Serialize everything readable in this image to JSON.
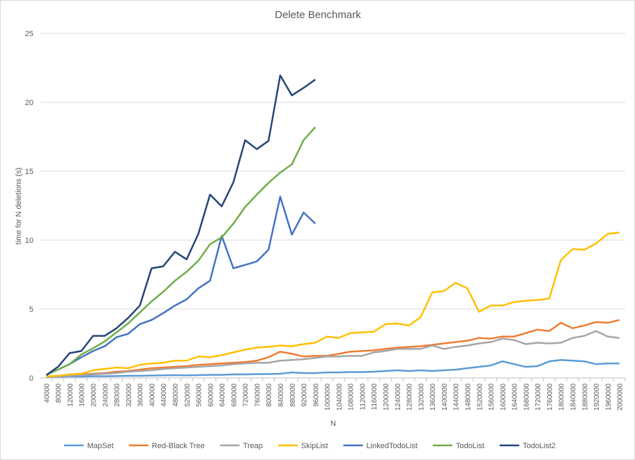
{
  "chart_data": {
    "type": "line",
    "title": "Delete Benchmark",
    "x_label": "N",
    "y_label": "time for N deletions (s)",
    "categories": [
      40000,
      80000,
      120000,
      160000,
      200000,
      240000,
      280000,
      320000,
      360000,
      400000,
      440000,
      480000,
      520000,
      560000,
      600000,
      640000,
      680000,
      720000,
      760000,
      800000,
      840000,
      880000,
      920000,
      960000,
      1000000,
      1040000,
      1080000,
      1120000,
      1160000,
      1200000,
      1240000,
      1280000,
      1320000,
      1360000,
      1400000,
      1440000,
      1480000,
      1520000,
      1560000,
      1600000,
      1640000,
      1680000,
      1720000,
      1760000,
      1800000,
      1840000,
      1880000,
      1920000,
      1960000,
      2000000
    ],
    "ylim": [
      0,
      25
    ],
    "yticks": [
      0,
      5,
      10,
      15,
      20,
      25
    ],
    "grid": true,
    "legend": "bottom",
    "series": [
      {
        "name": "MapSet",
        "color": "#5b9bd5",
        "values": [
          0.05,
          0.08,
          0.1,
          0.1,
          0.12,
          0.12,
          0.13,
          0.15,
          0.15,
          0.17,
          0.18,
          0.2,
          0.18,
          0.2,
          0.22,
          0.22,
          0.25,
          0.25,
          0.27,
          0.28,
          0.3,
          0.4,
          0.35,
          0.35,
          0.4,
          0.4,
          0.42,
          0.42,
          0.45,
          0.5,
          0.55,
          0.5,
          0.55,
          0.5,
          0.55,
          0.6,
          0.7,
          0.8,
          0.9,
          1.2,
          1.0,
          0.8,
          0.85,
          1.2,
          1.3,
          1.25,
          1.2,
          1.0,
          1.05,
          1.05
        ]
      },
      {
        "name": "Red-Black Tree",
        "color": "#ed7d31",
        "values": [
          0.1,
          0.15,
          0.2,
          0.25,
          0.3,
          0.35,
          0.45,
          0.5,
          0.6,
          0.7,
          0.75,
          0.8,
          0.85,
          0.95,
          1.0,
          1.05,
          1.1,
          1.15,
          1.25,
          1.5,
          1.9,
          1.75,
          1.55,
          1.6,
          1.6,
          1.75,
          1.9,
          1.95,
          2.0,
          2.1,
          2.2,
          2.25,
          2.3,
          2.4,
          2.5,
          2.6,
          2.7,
          2.9,
          2.85,
          3.0,
          3.0,
          3.25,
          3.5,
          3.4,
          4.0,
          3.6,
          3.8,
          4.05,
          4.0,
          4.2
        ]
      },
      {
        "name": "Treap",
        "color": "#a5a5a5",
        "values": [
          0.05,
          0.1,
          0.15,
          0.2,
          0.25,
          0.3,
          0.35,
          0.45,
          0.5,
          0.55,
          0.65,
          0.7,
          0.75,
          0.8,
          0.85,
          0.9,
          1.0,
          1.05,
          1.1,
          1.1,
          1.25,
          1.3,
          1.35,
          1.45,
          1.55,
          1.55,
          1.6,
          1.6,
          1.85,
          1.95,
          2.1,
          2.1,
          2.1,
          2.35,
          2.1,
          2.25,
          2.35,
          2.5,
          2.6,
          2.85,
          2.75,
          2.45,
          2.55,
          2.5,
          2.55,
          2.9,
          3.05,
          3.4,
          3.0,
          2.9
        ]
      },
      {
        "name": "SkipList",
        "color": "#ffc000",
        "values": [
          0.1,
          0.15,
          0.25,
          0.3,
          0.55,
          0.65,
          0.75,
          0.7,
          0.95,
          1.05,
          1.1,
          1.25,
          1.25,
          1.55,
          1.5,
          1.65,
          1.85,
          2.05,
          2.2,
          2.25,
          2.35,
          2.3,
          2.45,
          2.55,
          3.0,
          2.9,
          3.25,
          3.3,
          3.35,
          3.9,
          3.95,
          3.8,
          4.4,
          6.2,
          6.3,
          6.9,
          6.5,
          4.8,
          5.25,
          5.25,
          5.5,
          5.6,
          5.65,
          5.75,
          8.55,
          9.35,
          9.3,
          9.75,
          10.45,
          10.55
        ]
      },
      {
        "name": "LinkedTodoList",
        "color": "#4472c4",
        "values": [
          0.2,
          0.6,
          1.0,
          1.5,
          1.95,
          2.3,
          2.95,
          3.2,
          3.9,
          4.2,
          4.7,
          5.25,
          5.7,
          6.5,
          7.05,
          10.3,
          7.95,
          8.2,
          8.45,
          9.3,
          13.15,
          10.4,
          12.0,
          11.2,
          null,
          null,
          null,
          null,
          null,
          null,
          null,
          null,
          null,
          null,
          null,
          null,
          null,
          null,
          null,
          null,
          null,
          null,
          null,
          null,
          null,
          null,
          null,
          null,
          null,
          null
        ]
      },
      {
        "name": "TodoList",
        "color": "#70ad47",
        "values": [
          0.2,
          0.6,
          1.0,
          1.7,
          2.15,
          2.65,
          3.3,
          3.95,
          4.75,
          5.55,
          6.25,
          7.05,
          7.7,
          8.5,
          9.7,
          10.2,
          11.2,
          12.4,
          13.3,
          14.15,
          14.9,
          15.5,
          17.25,
          18.2,
          null,
          null,
          null,
          null,
          null,
          null,
          null,
          null,
          null,
          null,
          null,
          null,
          null,
          null,
          null,
          null,
          null,
          null,
          null,
          null,
          null,
          null,
          null,
          null,
          null,
          null
        ]
      },
      {
        "name": "TodoList2",
        "color": "#264478",
        "values": [
          0.2,
          0.8,
          1.8,
          1.95,
          3.05,
          3.05,
          3.6,
          4.35,
          5.25,
          7.95,
          8.1,
          9.15,
          8.6,
          10.45,
          13.3,
          12.45,
          14.2,
          17.25,
          16.6,
          17.2,
          21.95,
          20.5,
          21.05,
          21.65,
          null,
          null,
          null,
          null,
          null,
          null,
          null,
          null,
          null,
          null,
          null,
          null,
          null,
          null,
          null,
          null,
          null,
          null,
          null,
          null,
          null,
          null,
          null,
          null,
          null,
          null
        ]
      }
    ]
  }
}
